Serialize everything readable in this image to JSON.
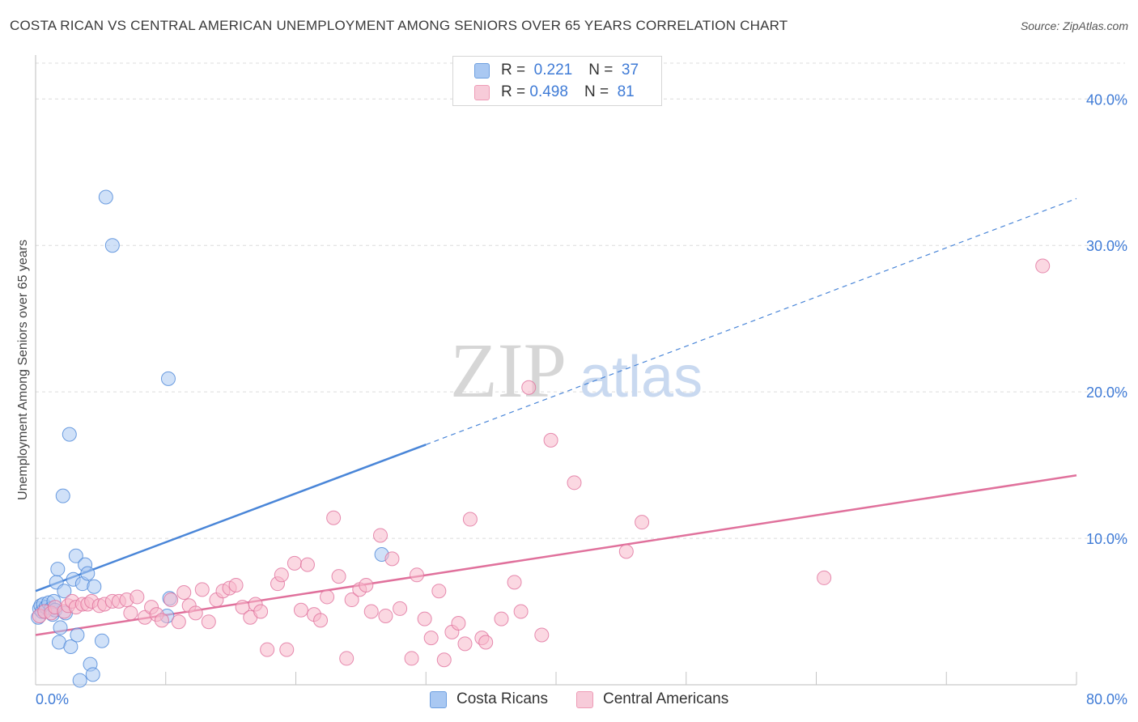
{
  "header": {
    "title": "COSTA RICAN VS CENTRAL AMERICAN UNEMPLOYMENT AMONG SENIORS OVER 65 YEARS CORRELATION CHART",
    "source": "Source: ZipAtlas.com"
  },
  "watermark": {
    "zip": "ZIP",
    "atlas": "atlas"
  },
  "legend": {
    "rows": [
      {
        "r_label": "R =",
        "r_value": "0.221",
        "n_label": "N =",
        "n_value": "37",
        "color": "#a9c8f2"
      },
      {
        "r_label": "R =",
        "r_value": "0.498",
        "n_label": "N =",
        "n_value": "81",
        "color": "#f7b8cb"
      }
    ]
  },
  "bottom_legend": {
    "items": [
      {
        "label": "Costa Ricans",
        "color": "#a9c8f2"
      },
      {
        "label": "Central Americans",
        "color": "#f7b8cb"
      }
    ]
  },
  "chart_data": {
    "type": "scatter",
    "title": "COSTA RICAN VS CENTRAL AMERICAN UNEMPLOYMENT AMONG SENIORS OVER 65 YEARS CORRELATION CHART",
    "xlabel": "",
    "ylabel": "Unemployment Among Seniors over 65 years",
    "xlim": [
      0,
      80
    ],
    "ylim": [
      0,
      43
    ],
    "x_tick_labels": [
      "0.0%",
      "80.0%"
    ],
    "y_ticks": [
      10,
      20,
      30,
      40
    ],
    "y_tick_labels": [
      "10.0%",
      "20.0%",
      "30.0%",
      "40.0%"
    ],
    "grid": true,
    "legend_position": "top-center",
    "series": [
      {
        "name": "Costa Ricans",
        "color": "#4a86d8",
        "fill": "#a9c8f2",
        "trend": {
          "x": [
            0,
            30
          ],
          "y": [
            6.4,
            16.4
          ],
          "dashed_to": [
            80,
            33.2
          ]
        },
        "points": [
          [
            0.2,
            4.6
          ],
          [
            0.3,
            5.2
          ],
          [
            0.4,
            5.4
          ],
          [
            0.5,
            5.0
          ],
          [
            0.6,
            5.5
          ],
          [
            0.8,
            5.3
          ],
          [
            1.0,
            5.6
          ],
          [
            1.2,
            5.2
          ],
          [
            1.3,
            4.8
          ],
          [
            1.4,
            5.7
          ],
          [
            1.5,
            5.1
          ],
          [
            1.6,
            7.0
          ],
          [
            1.7,
            7.9
          ],
          [
            1.8,
            2.9
          ],
          [
            1.9,
            3.9
          ],
          [
            2.1,
            12.9
          ],
          [
            2.2,
            6.4
          ],
          [
            2.3,
            4.9
          ],
          [
            2.6,
            17.1
          ],
          [
            2.7,
            2.6
          ],
          [
            2.9,
            7.2
          ],
          [
            3.1,
            8.8
          ],
          [
            3.2,
            3.4
          ],
          [
            3.4,
            0.3
          ],
          [
            3.6,
            6.9
          ],
          [
            3.8,
            8.2
          ],
          [
            4.0,
            7.6
          ],
          [
            4.2,
            1.4
          ],
          [
            4.4,
            0.7
          ],
          [
            4.5,
            6.7
          ],
          [
            5.1,
            3.0
          ],
          [
            5.4,
            33.3
          ],
          [
            5.9,
            30.0
          ],
          [
            10.1,
            4.7
          ],
          [
            10.3,
            5.9
          ],
          [
            10.2,
            20.9
          ],
          [
            26.6,
            8.9
          ]
        ]
      },
      {
        "name": "Central Americans",
        "color": "#e0719c",
        "fill": "#f7b8cb",
        "trend": {
          "x": [
            0,
            80
          ],
          "y": [
            3.4,
            14.3
          ]
        },
        "points": [
          [
            0.3,
            4.7
          ],
          [
            0.7,
            5.0
          ],
          [
            1.2,
            4.9
          ],
          [
            1.5,
            5.3
          ],
          [
            2.2,
            5.0
          ],
          [
            2.5,
            5.4
          ],
          [
            2.8,
            5.7
          ],
          [
            3.1,
            5.3
          ],
          [
            3.6,
            5.5
          ],
          [
            4.0,
            5.5
          ],
          [
            4.3,
            5.7
          ],
          [
            4.9,
            5.4
          ],
          [
            5.3,
            5.5
          ],
          [
            5.9,
            5.7
          ],
          [
            6.4,
            5.7
          ],
          [
            7.0,
            5.8
          ],
          [
            7.3,
            4.9
          ],
          [
            7.8,
            6.0
          ],
          [
            8.4,
            4.6
          ],
          [
            8.9,
            5.3
          ],
          [
            9.3,
            4.8
          ],
          [
            9.7,
            4.4
          ],
          [
            10.4,
            5.8
          ],
          [
            11.0,
            4.3
          ],
          [
            11.4,
            6.3
          ],
          [
            11.8,
            5.4
          ],
          [
            12.3,
            4.9
          ],
          [
            12.8,
            6.5
          ],
          [
            13.3,
            4.3
          ],
          [
            13.9,
            5.8
          ],
          [
            14.4,
            6.4
          ],
          [
            14.9,
            6.6
          ],
          [
            15.4,
            6.8
          ],
          [
            15.9,
            5.3
          ],
          [
            16.5,
            4.6
          ],
          [
            16.9,
            5.5
          ],
          [
            17.3,
            5.0
          ],
          [
            17.8,
            2.4
          ],
          [
            18.6,
            6.9
          ],
          [
            18.9,
            7.5
          ],
          [
            19.3,
            2.4
          ],
          [
            19.9,
            8.3
          ],
          [
            20.4,
            5.1
          ],
          [
            20.9,
            8.2
          ],
          [
            21.4,
            4.8
          ],
          [
            21.9,
            4.4
          ],
          [
            22.4,
            6.0
          ],
          [
            22.9,
            11.4
          ],
          [
            23.3,
            7.4
          ],
          [
            23.9,
            1.8
          ],
          [
            24.3,
            5.8
          ],
          [
            24.9,
            6.5
          ],
          [
            25.4,
            6.8
          ],
          [
            25.8,
            5.0
          ],
          [
            26.5,
            10.2
          ],
          [
            26.9,
            4.7
          ],
          [
            27.4,
            8.6
          ],
          [
            28.0,
            5.2
          ],
          [
            28.9,
            1.8
          ],
          [
            29.3,
            7.5
          ],
          [
            29.9,
            4.5
          ],
          [
            30.4,
            3.2
          ],
          [
            31.0,
            6.4
          ],
          [
            31.4,
            1.7
          ],
          [
            32.0,
            3.6
          ],
          [
            32.5,
            4.2
          ],
          [
            33.0,
            2.8
          ],
          [
            33.4,
            11.3
          ],
          [
            34.3,
            3.2
          ],
          [
            34.6,
            2.9
          ],
          [
            35.8,
            4.5
          ],
          [
            36.8,
            7.0
          ],
          [
            37.3,
            5.0
          ],
          [
            37.9,
            20.3
          ],
          [
            38.9,
            3.4
          ],
          [
            39.6,
            16.7
          ],
          [
            41.4,
            13.8
          ],
          [
            45.4,
            9.1
          ],
          [
            46.6,
            11.1
          ],
          [
            60.6,
            7.3
          ],
          [
            77.4,
            28.6
          ]
        ]
      }
    ]
  }
}
